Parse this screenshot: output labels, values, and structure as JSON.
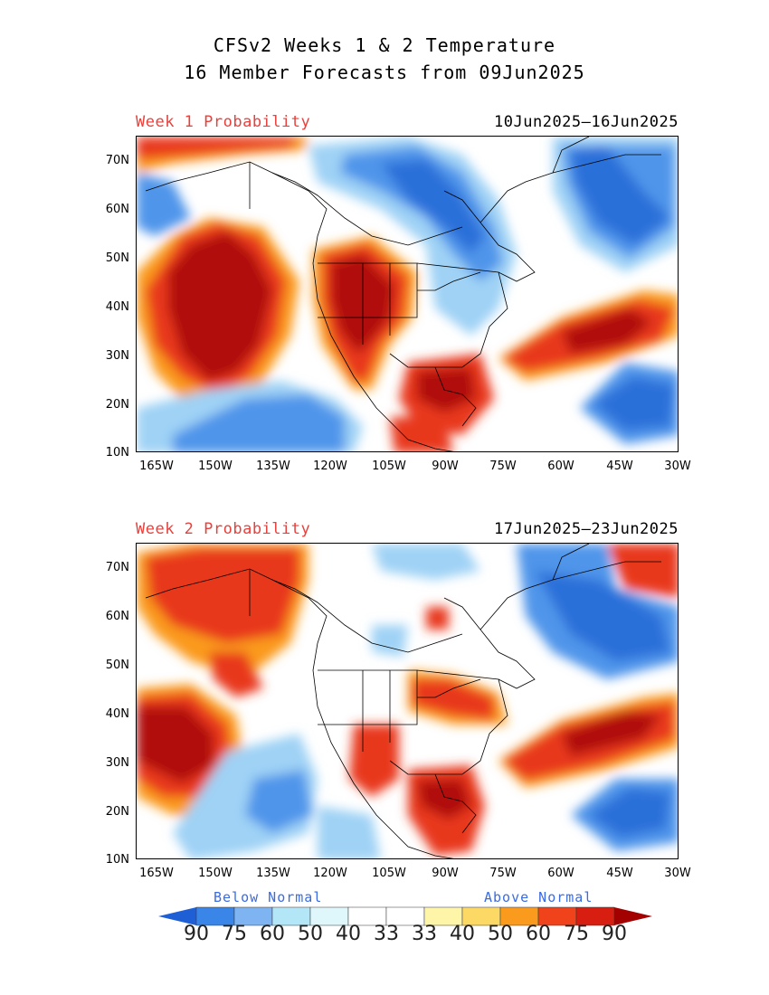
{
  "header": {
    "title_line1": "CFSv2 Weeks 1 & 2 Temperature",
    "title_line2": "16 Member Forecasts from 09Jun2025"
  },
  "panels": [
    {
      "label": "Week 1 Probability",
      "dates": "10Jun2025—16Jun2025"
    },
    {
      "label": "Week 2 Probability",
      "dates": "17Jun2025—23Jun2025"
    }
  ],
  "axes": {
    "lat_labels": [
      "70N",
      "60N",
      "50N",
      "40N",
      "30N",
      "20N",
      "10N"
    ],
    "lon_labels": [
      "165W",
      "150W",
      "135W",
      "120W",
      "105W",
      "90W",
      "75W",
      "60W",
      "45W",
      "30W"
    ]
  },
  "legend": {
    "below_label": "Below Normal",
    "above_label": "Above Normal",
    "values": [
      "90",
      "75",
      "60",
      "50",
      "40",
      "33",
      "33",
      "40",
      "50",
      "60",
      "75",
      "90"
    ],
    "colors": [
      "#1f5fd6",
      "#3a86e8",
      "#7fb4f2",
      "#b3e6f7",
      "#dff7fb",
      "#ffffff",
      "#ffffff",
      "#fff5a8",
      "#fcd964",
      "#fa9b1e",
      "#f0431c",
      "#d81e10",
      "#a30000"
    ]
  },
  "colors": {
    "blue_strong": "#2a6fd9",
    "blue_mid": "#4f95ea",
    "blue_light": "#9fd2f5",
    "red_dark": "#b10b0b",
    "red": "#e8391a",
    "orange": "#fa9a1e",
    "yellow": "#fde38a"
  }
}
